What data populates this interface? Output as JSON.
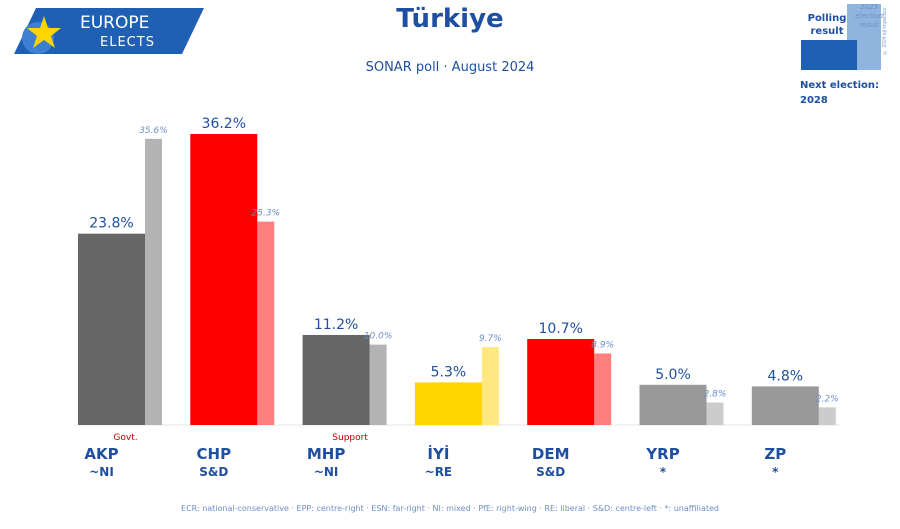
{
  "logo": {
    "line1": "EUROPE",
    "line2": "ELECTS"
  },
  "legend": {
    "polling_label": "Polling result",
    "election_label": "2023 election result",
    "credit": "© 2024 ejl lmpolitics",
    "next_election_label": "Next election:",
    "next_election_year": "2028"
  },
  "colors": {
    "title": "#1f4fa0",
    "legend_poll": "#1f5fb4",
    "legend_elec": "#8fb4de"
  },
  "chart_data": {
    "type": "bar",
    "title": "Türkiye",
    "subtitle": "SONAR poll · August 2024",
    "y_range": [
      0,
      40
    ],
    "grid": false,
    "legend_position": "top-right",
    "series": [
      {
        "name": "Polling result",
        "values": [
          23.8,
          36.2,
          11.2,
          5.3,
          10.7,
          5.0,
          4.8
        ]
      },
      {
        "name": "2023 election result",
        "values": [
          35.6,
          25.3,
          10.0,
          9.7,
          8.9,
          2.8,
          2.2
        ]
      }
    ],
    "categories": [
      {
        "party": "AKP",
        "group": "~NI",
        "role": "Govt.",
        "poll": 23.8,
        "prev": 35.6,
        "poll_label": "23.8%",
        "prev_label": "35.6%",
        "color": "#666666",
        "prev_color": "#b3b3b3"
      },
      {
        "party": "CHP",
        "group": "S&D",
        "role": "",
        "poll": 36.2,
        "prev": 25.3,
        "poll_label": "36.2%",
        "prev_label": "25.3%",
        "color": "#ff0000",
        "prev_color": "#ff7f7f"
      },
      {
        "party": "MHP",
        "group": "~NI",
        "role": "Support",
        "poll": 11.2,
        "prev": 10.0,
        "poll_label": "11.2%",
        "prev_label": "10.0%",
        "color": "#666666",
        "prev_color": "#b3b3b3"
      },
      {
        "party": "İYİ",
        "group": "~RE",
        "role": "",
        "poll": 5.3,
        "prev": 9.7,
        "poll_label": "5.3%",
        "prev_label": "9.7%",
        "color": "#ffd500",
        "prev_color": "#ffe97f"
      },
      {
        "party": "DEM",
        "group": "S&D",
        "role": "",
        "poll": 10.7,
        "prev": 8.9,
        "poll_label": "10.7%",
        "prev_label": "8.9%",
        "color": "#ff0000",
        "prev_color": "#ff7f7f"
      },
      {
        "party": "YRP",
        "group": "*",
        "role": "",
        "poll": 5.0,
        "prev": 2.8,
        "poll_label": "5.0%",
        "prev_label": "2.8%",
        "color": "#999999",
        "prev_color": "#cccccc"
      },
      {
        "party": "ZP",
        "group": "*",
        "role": "",
        "poll": 4.8,
        "prev": 2.2,
        "poll_label": "4.8%",
        "prev_label": "2.2%",
        "color": "#999999",
        "prev_color": "#cccccc"
      }
    ],
    "footnote": "ECR: national-conservative · EPP: centre-right · ESN: far-right · NI: mixed · PfE: right-wing · RE: liberal · S&D: centre-left · *: unaffiliated"
  }
}
